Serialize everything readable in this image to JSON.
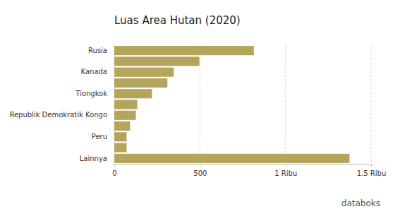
{
  "chart_data": {
    "type": "bar",
    "title": "Luas Area Hutan (2020)",
    "categories": [
      "Rusia",
      null,
      "Kanada",
      null,
      "Tiongkok",
      null,
      "Republik Demokratik Kongo",
      null,
      "Peru",
      null,
      "Lainnya"
    ],
    "values": [
      815,
      497,
      347,
      310,
      220,
      134,
      126,
      92,
      72,
      72,
      1374
    ],
    "color": "#b3a55c",
    "orientation": "horizontal",
    "xlim": [
      0,
      1500
    ],
    "xticks": [
      0,
      500,
      {
        "value": 1000,
        "label": "1 Ribu"
      },
      {
        "value": 1500,
        "label": "1.5 Ribu"
      }
    ],
    "grid": true,
    "credit": "databoks"
  }
}
